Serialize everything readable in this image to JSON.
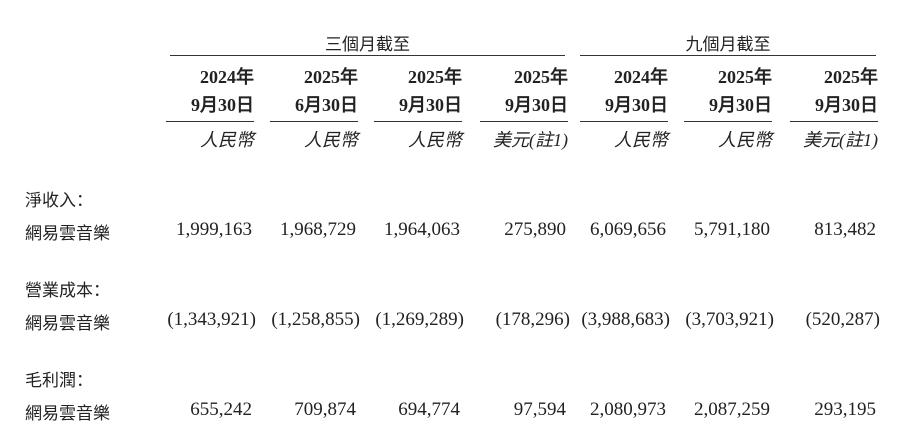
{
  "groups": [
    "三個月截至",
    "九個月截至"
  ],
  "columns": [
    {
      "year": "2024年",
      "date": "9月30日",
      "currency": "人民幣"
    },
    {
      "year": "2025年",
      "date": "6月30日",
      "currency": "人民幣"
    },
    {
      "year": "2025年",
      "date": "9月30日",
      "currency": "人民幣"
    },
    {
      "year": "2025年",
      "date": "9月30日",
      "currency": "美元(註1)"
    },
    {
      "year": "2024年",
      "date": "9月30日",
      "currency": "人民幣"
    },
    {
      "year": "2025年",
      "date": "9月30日",
      "currency": "人民幣"
    },
    {
      "year": "2025年",
      "date": "9月30日",
      "currency": "美元(註1)"
    }
  ],
  "sections": [
    {
      "title": "淨收入：",
      "row_label": "網易雲音樂",
      "values": [
        "1,999,163",
        "1,968,729",
        "1,964,063",
        "275,890",
        "6,069,656",
        "5,791,180",
        "813,482"
      ]
    },
    {
      "title": "營業成本：",
      "row_label": "網易雲音樂",
      "values": [
        "(1,343,921)",
        "(1,258,855)",
        "(1,269,289)",
        "(178,296)",
        "(3,988,683)",
        "(3,703,921)",
        "(520,287)"
      ]
    },
    {
      "title": "毛利潤：",
      "row_label": "網易雲音樂",
      "values": [
        "655,242",
        "709,874",
        "694,774",
        "97,594",
        "2,080,973",
        "2,087,259",
        "293,195"
      ]
    }
  ]
}
